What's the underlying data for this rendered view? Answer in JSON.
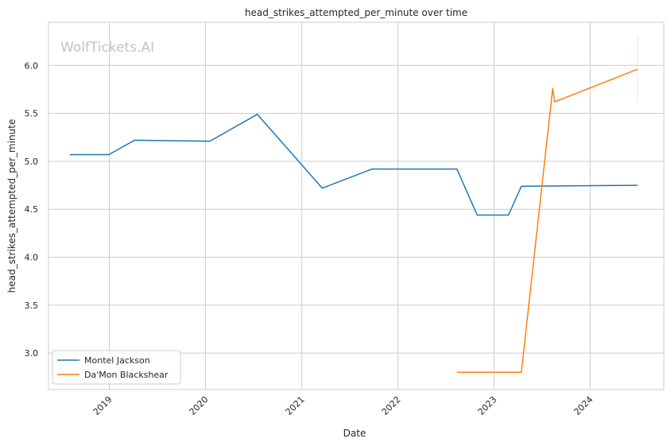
{
  "chart_data": {
    "type": "line",
    "title": "head_strikes_attempted_per_minute over time",
    "xlabel": "Date",
    "ylabel": "head_strikes_attempted_per_minute",
    "watermark": "WolfTickets.AI",
    "x_ticks": [
      "2019",
      "2020",
      "2021",
      "2022",
      "2023",
      "2024"
    ],
    "y_ticks": [
      "3.0",
      "3.5",
      "4.0",
      "4.5",
      "5.0",
      "5.5",
      "6.0"
    ],
    "xlim": [
      "2018-05-15",
      "2024-10-07"
    ],
    "ylim": [
      2.62,
      6.45
    ],
    "grid": true,
    "legend_position": "lower-left",
    "series": [
      {
        "name": "Montel Jackson",
        "color": "#1f77b4",
        "points": [
          {
            "x": "2018-08-04",
            "y": 5.07
          },
          {
            "x": "2018-12-30",
            "y": 5.07
          },
          {
            "x": "2019-04-07",
            "y": 5.22
          },
          {
            "x": "2020-01-18",
            "y": 5.21
          },
          {
            "x": "2020-07-16",
            "y": 5.49
          },
          {
            "x": "2021-03-20",
            "y": 4.72
          },
          {
            "x": "2021-09-25",
            "y": 4.92
          },
          {
            "x": "2022-08-13",
            "y": 4.92
          },
          {
            "x": "2022-10-29",
            "y": 4.44
          },
          {
            "x": "2023-02-25",
            "y": 4.44
          },
          {
            "x": "2023-04-15",
            "y": 4.74
          },
          {
            "x": "2024-06-29",
            "y": 4.75
          }
        ]
      },
      {
        "name": "Da'Mon Blackshear",
        "color": "#ff7f0e",
        "points": [
          {
            "x": "2022-08-13",
            "y": 2.8
          },
          {
            "x": "2023-04-15",
            "y": 2.8
          },
          {
            "x": "2023-08-12",
            "y": 5.76
          },
          {
            "x": "2023-08-19",
            "y": 5.62
          },
          {
            "x": "2024-06-29",
            "y": 5.96
          }
        ],
        "error_bar": {
          "x": "2024-06-29",
          "low": 5.62,
          "high": 6.3
        }
      }
    ]
  }
}
